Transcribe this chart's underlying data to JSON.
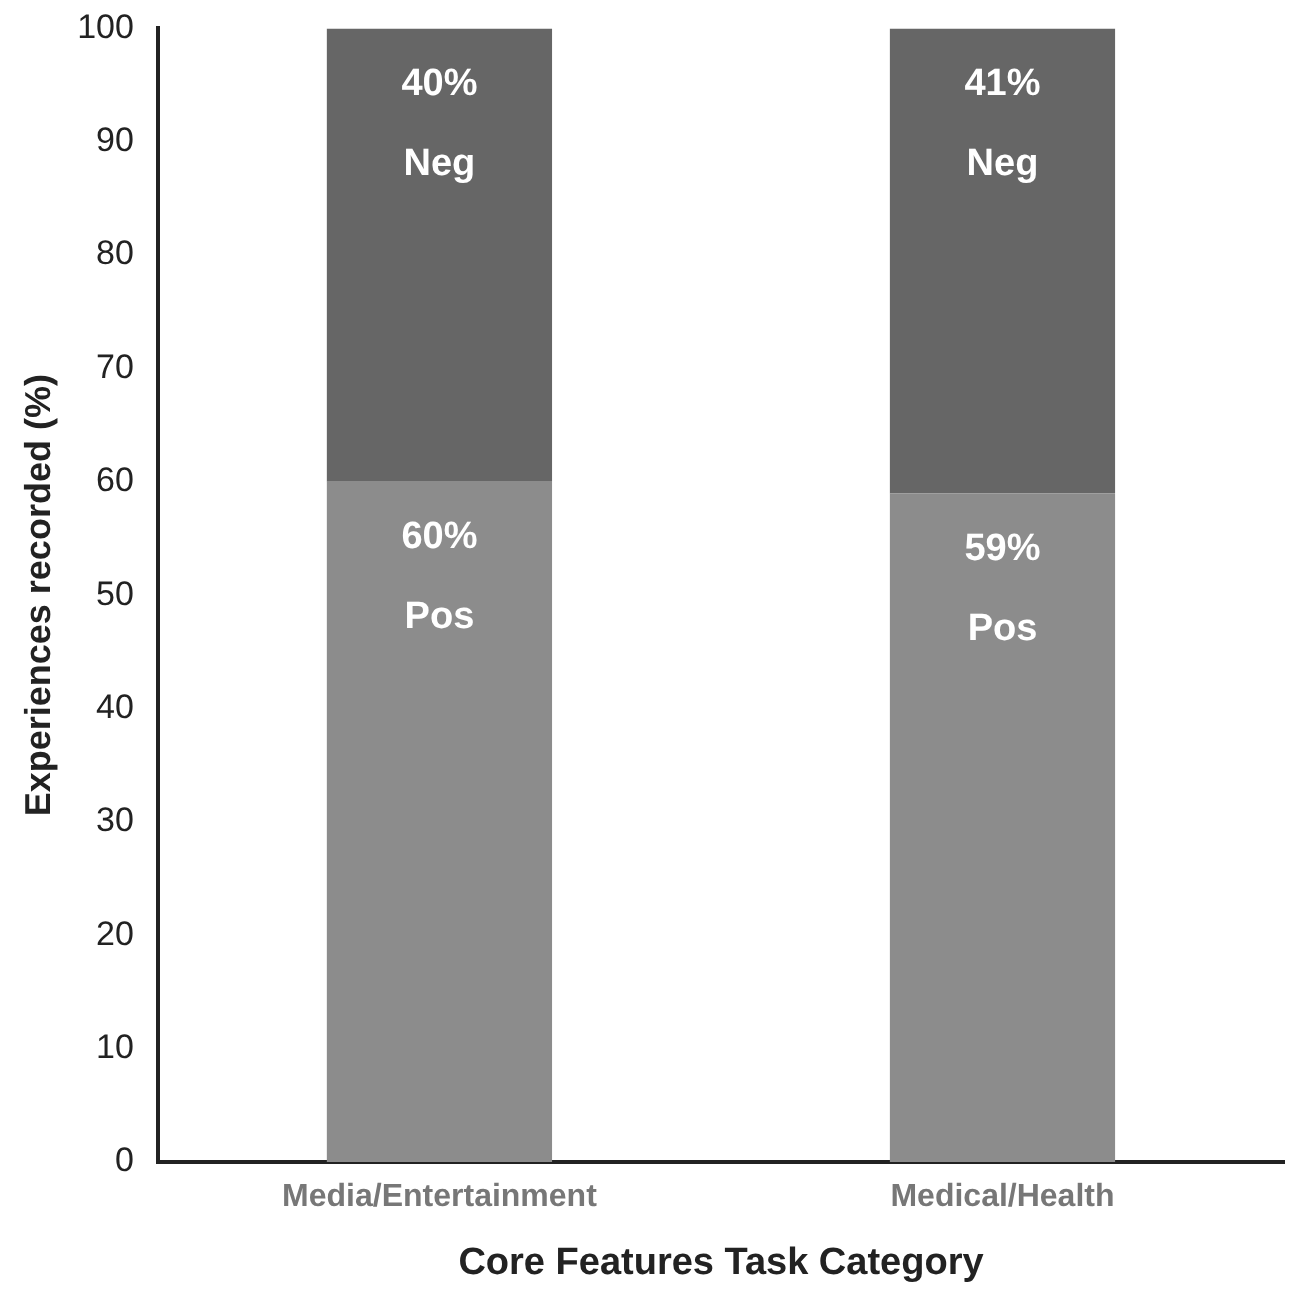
{
  "chart_data": {
    "type": "bar",
    "stacked": true,
    "xlabel": "Core Features Task Category",
    "ylabel": "Experiences recorded (%)",
    "categories": [
      "Media/Entertainment",
      "Medical/Health"
    ],
    "series": [
      {
        "name": "Pos",
        "color": "#8c8c8c",
        "values": [
          60,
          59
        ],
        "value_labels": [
          "60%",
          "59%"
        ]
      },
      {
        "name": "Neg",
        "color": "#666666",
        "values": [
          40,
          41
        ],
        "value_labels": [
          "40%",
          "41%"
        ]
      }
    ],
    "ylim": [
      0,
      100
    ],
    "yticks": [
      0,
      10,
      20,
      30,
      40,
      50,
      60,
      70,
      80,
      90,
      100
    ],
    "grid": false,
    "legend": false
  }
}
